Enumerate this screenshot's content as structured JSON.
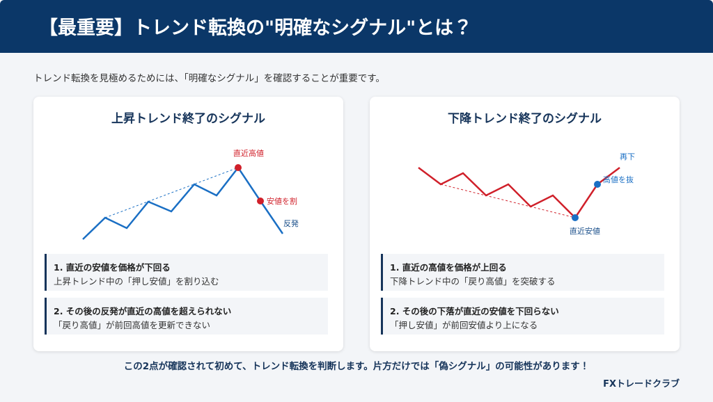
{
  "header": {
    "title": "【最重要】トレンド転換の\"明確なシグナル\"とは？"
  },
  "intro": "トレンド転換を見極めるためには、「明確なシグナル」を確認することが重要です。",
  "cards": [
    {
      "title": "上昇トレンド終了のシグナル",
      "chart_labels": [
        "直近高値",
        "安値を割",
        "反発"
      ],
      "points": [
        {
          "heading": "1. 直近の安値を価格が下回る",
          "text": "上昇トレンド中の「押し安値」を割り込む"
        },
        {
          "heading": "2. その後の反発が直近の高値を超えられない",
          "text": "「戻り高値」が前回高値を更新できない"
        }
      ]
    },
    {
      "title": "下降トレンド終了のシグナル",
      "chart_labels": [
        "直近安値",
        "高値を抜",
        "再下"
      ],
      "points": [
        {
          "heading": "1. 直近の高値を価格が上回る",
          "text": "下降トレンド中の「戻り高値」を突破する"
        },
        {
          "heading": "2. その後の下落が直近の安値を下回らない",
          "text": "「押し安値」が前回安値より上になる"
        }
      ]
    }
  ],
  "footer": {
    "note": "この2点が確認されて初めて、トレンド転換を判断します。片方だけでは「偽シグナル」の可能性があります！",
    "brand": "FXトレードクラブ"
  }
}
